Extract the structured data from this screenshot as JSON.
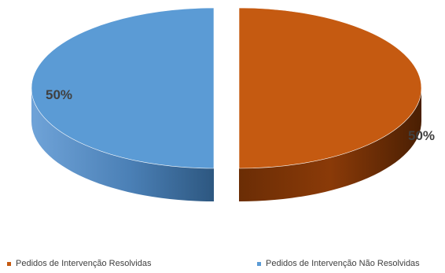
{
  "chart_data": {
    "type": "pie",
    "variant": "3d-exploded",
    "title": "",
    "slices": [
      {
        "label": "Pedidos de Intervenção Resolvidas",
        "value": 50,
        "display": "50%",
        "color": "#C55A11"
      },
      {
        "label": "Pedidos de Intervenção Não Resolvidas",
        "value": 50,
        "display": "50%",
        "color": "#5B9BD5"
      }
    ],
    "legend": {
      "position": "bottom"
    }
  }
}
